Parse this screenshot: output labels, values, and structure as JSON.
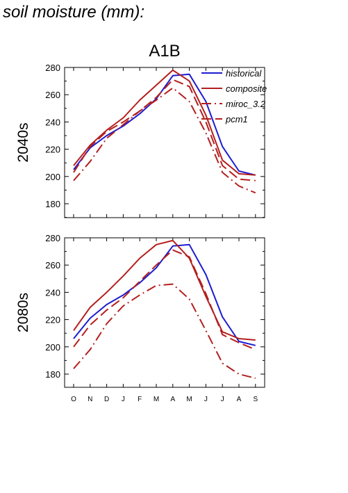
{
  "figure_title": "soil moisture (mm):",
  "chart_data": [
    {
      "type": "line",
      "panel_title": "A1B",
      "row_label": "2040s",
      "categories": [
        "O",
        "N",
        "D",
        "J",
        "F",
        "M",
        "A",
        "M",
        "J",
        "J",
        "A",
        "S"
      ],
      "ylim": [
        170,
        280
      ],
      "yticks": [
        180,
        200,
        220,
        240,
        260,
        280
      ],
      "legend_position": "top-right",
      "series": [
        {
          "name": "historical",
          "color": "#1c1cd0",
          "dash": "solid",
          "values": [
            205,
            221,
            230,
            237,
            246,
            257,
            274,
            275,
            255,
            222,
            204,
            201
          ]
        },
        {
          "name": "composite",
          "color": "#b41e1e",
          "dash": "solid",
          "values": [
            208,
            223,
            234,
            243,
            256,
            267,
            278,
            270,
            245,
            212,
            202,
            201
          ]
        },
        {
          "name": "miroc_3.2",
          "color": "#b41e1e",
          "dash": "dashdot",
          "values": [
            197,
            211,
            228,
            238,
            248,
            256,
            265,
            255,
            232,
            203,
            193,
            188
          ]
        },
        {
          "name": "pcm1",
          "color": "#b41e1e",
          "dash": "dashed",
          "values": [
            203,
            222,
            233,
            240,
            248,
            258,
            271,
            266,
            240,
            208,
            198,
            197
          ]
        }
      ]
    },
    {
      "type": "line",
      "panel_title": "",
      "row_label": "2080s",
      "categories": [
        "O",
        "N",
        "D",
        "J",
        "F",
        "M",
        "A",
        "M",
        "J",
        "J",
        "A",
        "S"
      ],
      "ylim": [
        170,
        280
      ],
      "yticks": [
        180,
        200,
        220,
        240,
        260,
        280
      ],
      "series": [
        {
          "name": "historical",
          "color": "#1c1cd0",
          "dash": "solid",
          "values": [
            206,
            221,
            231,
            238,
            247,
            258,
            274,
            275,
            253,
            222,
            204,
            201
          ]
        },
        {
          "name": "composite",
          "color": "#b41e1e",
          "dash": "solid",
          "values": [
            212,
            229,
            240,
            252,
            265,
            275,
            278,
            265,
            237,
            211,
            206,
            205
          ]
        },
        {
          "name": "miroc_3.2",
          "color": "#b41e1e",
          "dash": "dashdot",
          "values": [
            184,
            198,
            217,
            230,
            238,
            245,
            246,
            235,
            212,
            188,
            180,
            177
          ]
        },
        {
          "name": "pcm1",
          "color": "#b41e1e",
          "dash": "dashed",
          "values": [
            200,
            216,
            227,
            236,
            248,
            260,
            271,
            266,
            239,
            209,
            203,
            198
          ]
        }
      ]
    }
  ]
}
